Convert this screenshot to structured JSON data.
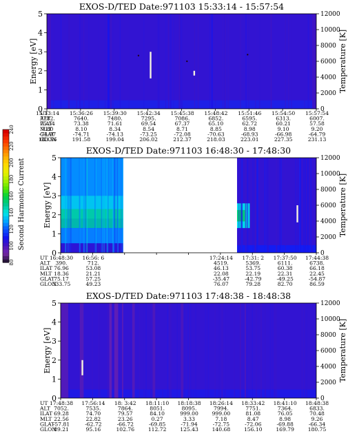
{
  "chart_data": [
    {
      "type": "heatmap",
      "title": "EXOS-D/TED   Date:971103   15:33:14 - 15:57:54",
      "ylabel": "Energy [eV]",
      "y2label": "Temperature [K]",
      "ylim": [
        0,
        5
      ],
      "y_ticks": [
        "0",
        "1",
        "2",
        "3",
        "4",
        "5"
      ],
      "y2lim": [
        0,
        12000
      ],
      "y2_ticks": [
        "0",
        "2000",
        "4000",
        "6000",
        "8000",
        "10000",
        "12000"
      ],
      "row_labels": [
        "UT",
        "ALT",
        "ILAT",
        "MLT",
        "GLAT",
        "GLON"
      ],
      "columns": [
        [
          "15:33:14",
          "7782.",
          "75.54",
          "7.80",
          "-74.97",
          "183.56"
        ],
        [
          "15:36:26",
          "7640.",
          "73.38",
          "8.10",
          "-74.71",
          "191.58"
        ],
        [
          "15:39:30",
          "7480.",
          "71.61",
          "8.34",
          "-74.13",
          "199.04"
        ],
        [
          "15:42:34",
          "7295.",
          "69.54",
          "8.54",
          "-73.25",
          "206.02"
        ],
        [
          "15:45:38",
          "7086.",
          "67.37",
          "8.71",
          "-72.08",
          "212.37"
        ],
        [
          "15:48:42",
          "6852.",
          "65.10",
          "8.85",
          "-70.63",
          "218.03"
        ],
        [
          "15:51:46",
          "6595.",
          "62.72",
          "8.98",
          "-68.93",
          "223.01"
        ],
        [
          "15:54:50",
          "6313.",
          "60.21",
          "9.10",
          "-66.98",
          "227.35"
        ],
        [
          "15:57:54",
          "6007.",
          "57.58",
          "9.20",
          "-64.79",
          "231.13"
        ]
      ],
      "data_gaps": [],
      "bands": [
        {
          "from": 0.0,
          "to": 0.015,
          "value": 100
        },
        {
          "from": 0.225,
          "to": 0.232,
          "value": 108
        },
        {
          "from": 0.61,
          "to": 0.616,
          "value": 107
        },
        {
          "from": 0.985,
          "to": 1.0,
          "value": 100
        }
      ],
      "spikes": [
        {
          "x": 0.385,
          "e_lo": 1.6,
          "e_hi": 3.0,
          "value": 230
        },
        {
          "x": 0.547,
          "e_lo": 1.75,
          "e_hi": 2.0,
          "value": 230
        }
      ],
      "dots": [
        {
          "x": 0.34,
          "e": 2.8
        },
        {
          "x": 0.52,
          "e": 2.5
        },
        {
          "x": 0.745,
          "e": 2.85
        }
      ],
      "background_value": 103,
      "low_energy_value": 112
    },
    {
      "type": "heatmap",
      "title": "EXOS-D/TED   Date:971103   16:48:30 - 17:48:30",
      "ylabel": "Energy [eV]",
      "y2label": "Temperature [K]",
      "ylim": [
        0,
        5
      ],
      "y_ticks": [
        "0",
        "1",
        "2",
        "3",
        "4",
        "5"
      ],
      "y2lim": [
        0,
        12000
      ],
      "y2_ticks": [
        "0",
        "2000",
        "4000",
        "6000",
        "8000",
        "10000",
        "12000"
      ],
      "row_labels": [
        "UT",
        "ALT",
        "ILAT",
        "MLT",
        "GLAT",
        "GLON"
      ],
      "columns": [
        [
          "16:48:30",
          "390.",
          "76.96",
          "18.36",
          "75.17",
          "333.75"
        ],
        [
          "16:56: 6",
          "712.",
          "53.08",
          "21.21",
          "57.25",
          "49.23"
        ],
        [
          "",
          "",
          "",
          "",
          "",
          ""
        ],
        [
          "",
          "",
          "",
          "",
          "",
          ""
        ],
        [
          "",
          "",
          "",
          "",
          "",
          ""
        ],
        [
          "17:24:14",
          "4519.",
          "46.13",
          "22.08",
          "-35.47",
          "76.07"
        ],
        [
          "17:31: 2",
          "5369.",
          "53.75",
          "22.19",
          "-42.79",
          "79.28"
        ],
        [
          "17:37:50",
          "6111.",
          "60.38",
          "22.31",
          "-49.25",
          "82.70"
        ],
        [
          "17:44:38",
          "6738.",
          "66.18",
          "22.45",
          "-54.87",
          "86.59"
        ]
      ],
      "data_gaps": [
        [
          0.245,
          0.69
        ]
      ],
      "segments": [
        {
          "from": 0.0,
          "to": 0.245,
          "profile": "dense"
        },
        {
          "from": 0.69,
          "to": 1.0,
          "profile": "mixed"
        }
      ],
      "bands": [
        {
          "from": 0.74,
          "to": 0.75,
          "value": 92
        },
        {
          "from": 0.78,
          "to": 0.79,
          "value": 98
        },
        {
          "from": 0.905,
          "to": 0.915,
          "value": 92
        },
        {
          "from": 0.93,
          "to": 0.94,
          "value": 96
        }
      ],
      "spikes": [
        {
          "x": 0.926,
          "e_lo": 1.6,
          "e_hi": 2.5,
          "value": 230
        }
      ],
      "dots": [],
      "background_value": 103,
      "low_energy_value": 112
    },
    {
      "type": "heatmap",
      "title": "EXOS-D/TED   Date:971103   17:48:38 - 18:48:38",
      "ylabel": "Energy [eV]",
      "y2label": "Temperature [K]",
      "ylim": [
        0,
        5
      ],
      "y_ticks": [
        "0",
        "1",
        "2",
        "3",
        "4",
        "5"
      ],
      "y2lim": [
        0,
        12000
      ],
      "y2_ticks": [
        "0",
        "2000",
        "4000",
        "6000",
        "8000",
        "10000",
        "12000"
      ],
      "row_labels": [
        "UT",
        "ALT",
        "ILAT",
        "MLT",
        "GLAT",
        "GLON"
      ],
      "columns": [
        [
          "17:48:38",
          "7052.",
          "69.28",
          "22.56",
          "-57.81",
          "89.21"
        ],
        [
          "17:56:14",
          "7535.",
          "74.70",
          "22.82",
          "-62.72",
          "95.16"
        ],
        [
          "18: 3:42",
          "7864.",
          "79.57",
          "23.26",
          "-66.72",
          "102.76"
        ],
        [
          "18:11:10",
          "8051.",
          "84.10",
          "0.27",
          "-69.85",
          "112.72"
        ],
        [
          "18:18:38",
          "8095.",
          "999.00",
          "3.33",
          "-71.94",
          "125.43"
        ],
        [
          "18:26:14",
          "7994.",
          "999.00",
          "7.18",
          "-72.75",
          "140.68"
        ],
        [
          "18:33:42",
          "7751.",
          "81.08",
          "8.47",
          "-72.06",
          "156.10"
        ],
        [
          "18:41:10",
          "7364.",
          "76.05",
          "8.98",
          "-69.88",
          "169.79"
        ],
        [
          "18:48:38",
          "6833.",
          "70.48",
          "9.26",
          "-66.34",
          "180.75"
        ]
      ],
      "data_gaps": [],
      "bands": [
        {
          "from": 0.0,
          "to": 0.03,
          "value": 96
        },
        {
          "from": 0.075,
          "to": 0.09,
          "value": 96
        },
        {
          "from": 0.19,
          "to": 0.2,
          "value": 93
        },
        {
          "from": 0.21,
          "to": 0.225,
          "value": 93
        },
        {
          "from": 0.24,
          "to": 0.245,
          "value": 95
        },
        {
          "from": 0.28,
          "to": 0.29,
          "value": 96
        },
        {
          "from": 0.36,
          "to": 0.37,
          "value": 97
        },
        {
          "from": 0.47,
          "to": 0.48,
          "value": 98
        },
        {
          "from": 0.72,
          "to": 0.725,
          "value": 98
        }
      ],
      "spikes": [
        {
          "x": 0.085,
          "e_lo": 1.2,
          "e_hi": 2.0,
          "value": 230
        }
      ],
      "dots": [],
      "background_value": 103,
      "low_energy_value": 110
    }
  ],
  "colorbar": {
    "label": "Second Harmonic Current",
    "vmin": 80,
    "vmax": 240,
    "ticks": [
      "80",
      "100",
      "120",
      "140",
      "160",
      "180",
      "200",
      "220",
      "240"
    ]
  }
}
